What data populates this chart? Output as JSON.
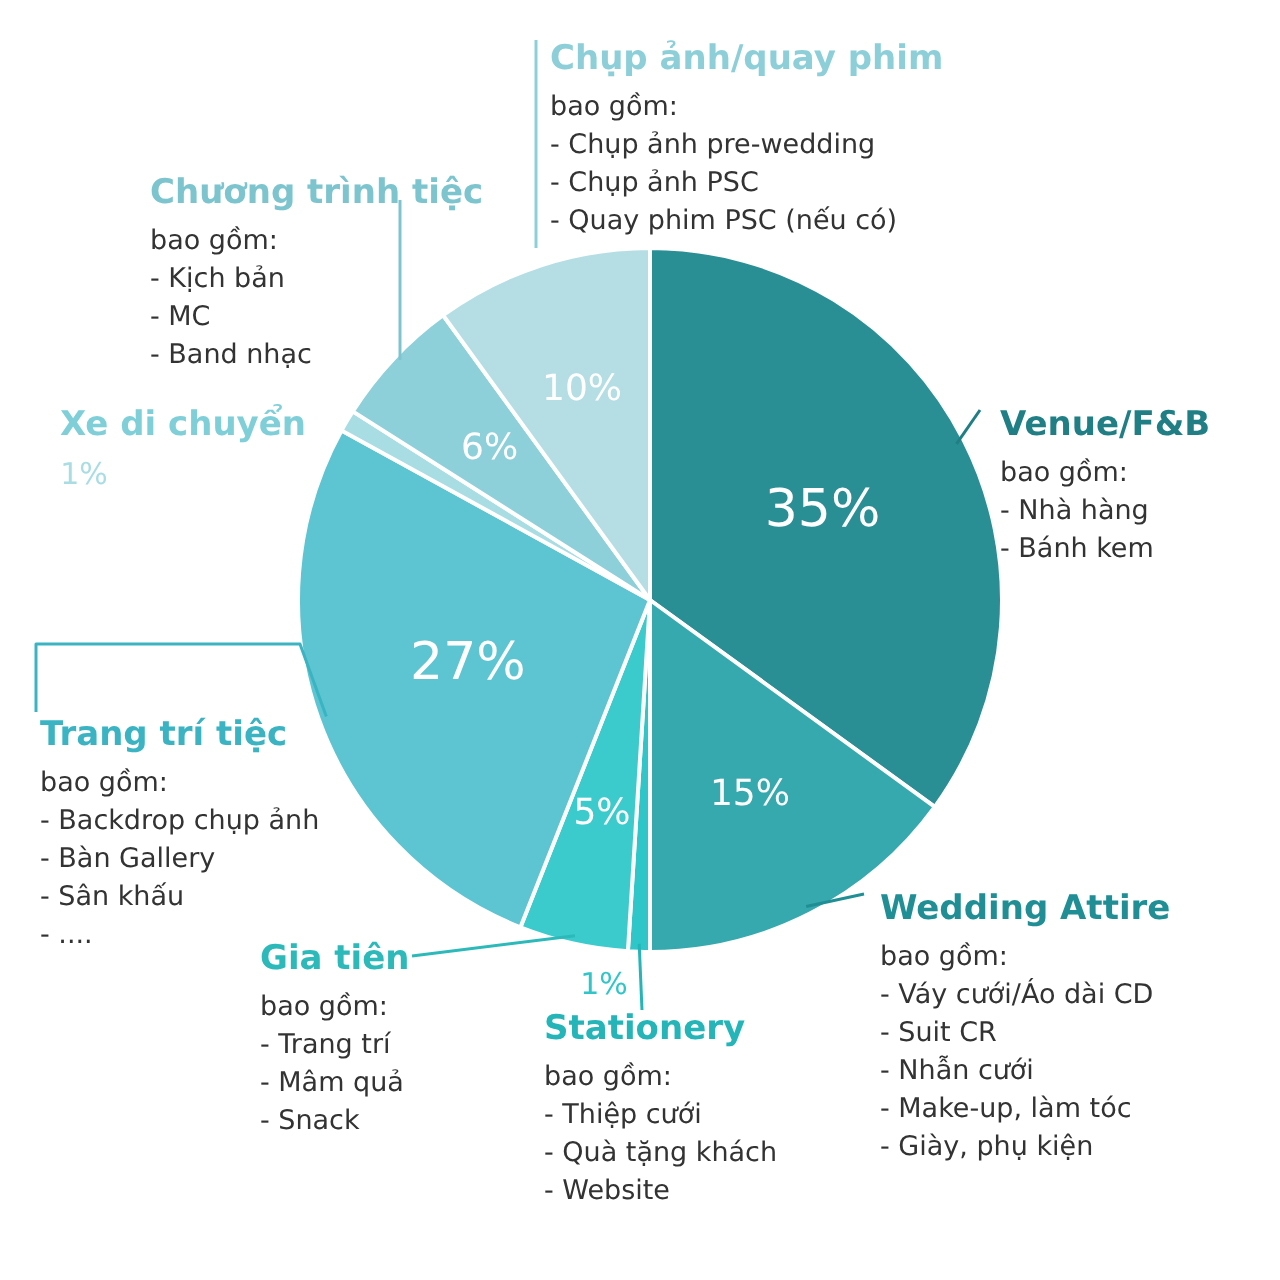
{
  "chart_data": {
    "type": "pie",
    "categories": [
      "Venue/F&B",
      "Wedding Attire",
      "Stationery",
      "Gia tiên",
      "Trang trí tiệc",
      "Xe di chuyển",
      "Chương trình tiệc",
      "Chụp ảnh/quay phim"
    ],
    "values": [
      35,
      15,
      1,
      5,
      27,
      1,
      6,
      10
    ],
    "colors": [
      "#2a8f94",
      "#36a9ae",
      "#2ec6c8",
      "#3ccbcc",
      "#5cc5d1",
      "#a8dde4",
      "#8ed0d9",
      "#b5dee4"
    ],
    "value_labels": [
      "35%",
      "15%",
      "1%",
      "5%",
      "27%",
      "1%",
      "6%",
      "10%"
    ],
    "legend": false,
    "annotations": [
      "bao gồm:\n- Nhà hàng\n- Bánh kem",
      "bao gồm:\n- Váy cưới/Áo dài CD\n- Suit CR\n- Nhẫn cưới\n- Make-up, làm tóc\n- Giày, phụ kiện",
      "bao gồm:\n- Thiệp cưới\n- Quà tặng khách\n- Website",
      "bao gồm:\n- Trang trí\n- Mâm quả\n- Snack",
      "bao gồm:\n- Backdrop chụp ảnh\n- Bàn Gallery\n- Sân khấu\n- ....",
      "bao gồm:\n- Kịch bản\n- MC\n- Band nhạc",
      "bao gồm:\n- Chụp ảnh pre-wedding\n- Chụp ảnh PSC\n- Quay phim PSC (nếu có)"
    ]
  }
}
